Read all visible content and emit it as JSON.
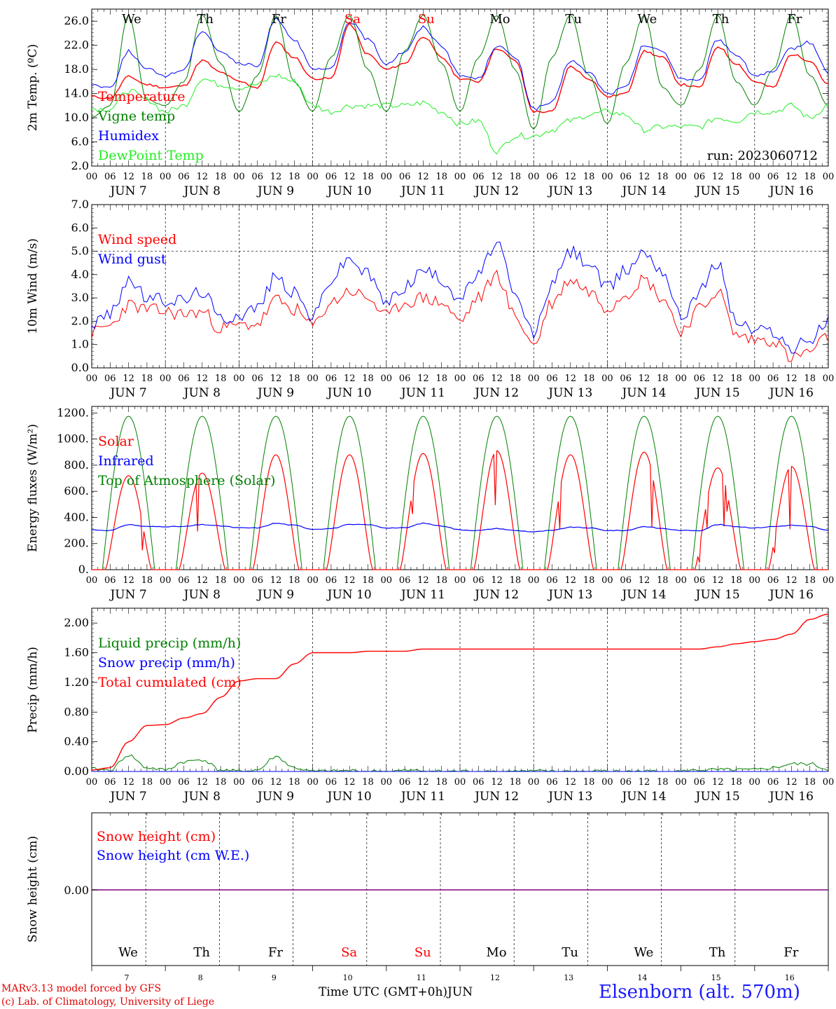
{
  "footer": {
    "credit_line1": "MARv3.13 model forced by GFS",
    "credit_line2": "(c) Lab. of Climatology, University of Liege",
    "time_axis": "Time UTC (GMT+0h)",
    "month": "JUN",
    "station": "Elsenborn (alt. 570m)"
  },
  "colors": {
    "red": "#ff0000",
    "blue": "#0000ff",
    "green": "#008000",
    "lime": "#22ee22",
    "purple": "#800080"
  },
  "chart_data": [
    {
      "type": "line",
      "id": "temperature",
      "ylabel": "2m Temp. (ºC)",
      "ylim": [
        2,
        28
      ],
      "yticks": [
        "2.0",
        "6.0",
        "10.0",
        "14.0",
        "18.0",
        "22.0",
        "26.0"
      ],
      "annotation": "run: 2023060712",
      "weekday_labels": [
        "We",
        "Th",
        "Fr",
        "Sa",
        "Su",
        "Mo",
        "Tu",
        "We",
        "Th",
        "Fr"
      ],
      "weekday_colors": [
        "#000",
        "#000",
        "#000",
        "#ff0000",
        "#ff0000",
        "#000",
        "#000",
        "#000",
        "#000",
        "#000"
      ],
      "hour_ticks": [
        "00",
        "06",
        "12",
        "18"
      ],
      "date_labels": [
        "JUN  7",
        "JUN  8",
        "JUN  9",
        "JUN 10",
        "JUN 11",
        "JUN 12",
        "JUN 13",
        "JUN 14",
        "JUN 15",
        "JUN 16"
      ],
      "x_hours": [
        0,
        6,
        12,
        18,
        24,
        30,
        36,
        42,
        48,
        54,
        60,
        66,
        72,
        78,
        84,
        90,
        96,
        102,
        108,
        114,
        120,
        126,
        132,
        138,
        144,
        150,
        156,
        162,
        168,
        174,
        180,
        186,
        192,
        198,
        204,
        210,
        216,
        222,
        228,
        234,
        240
      ],
      "series": [
        {
          "name": "Temperature",
          "color": "#ff0000",
          "values": [
            13.5,
            13.2,
            16.8,
            15.5,
            15.0,
            15.3,
            19.5,
            17.5,
            16.0,
            15.0,
            22.5,
            20.0,
            16.5,
            16.5,
            25.5,
            20.5,
            18.0,
            19.0,
            23.5,
            20.0,
            16.5,
            16.0,
            21.5,
            19.5,
            11.0,
            11.0,
            18.5,
            16.5,
            13.5,
            14.0,
            21.0,
            20.0,
            15.5,
            15.0,
            21.8,
            19.0,
            16.0,
            15.0,
            20.5,
            19.5,
            15.5
          ]
        },
        {
          "name": "Vigne temp",
          "color": "#008000",
          "values": [
            10.0,
            12.0,
            27.0,
            13.0,
            12.0,
            16.0,
            27.0,
            19.0,
            11.0,
            17.0,
            27.0,
            16.0,
            11.0,
            20.0,
            27.0,
            18.0,
            11.0,
            21.0,
            27.0,
            19.0,
            11.0,
            20.0,
            27.0,
            18.0,
            8.0,
            20.0,
            27.0,
            17.0,
            9.0,
            19.0,
            27.0,
            15.0,
            12.0,
            18.0,
            27.0,
            16.0,
            12.0,
            18.0,
            27.0,
            17.0,
            12.0
          ]
        },
        {
          "name": "Humidex",
          "color": "#0000ff",
          "values": [
            15.5,
            15.0,
            21.0,
            18.0,
            17.0,
            18.0,
            24.5,
            21.0,
            19.0,
            18.5,
            26.5,
            23.0,
            18.0,
            18.0,
            26.0,
            23.0,
            19.0,
            21.0,
            25.0,
            22.0,
            17.0,
            16.5,
            22.0,
            20.0,
            11.5,
            12.5,
            19.5,
            17.5,
            14.0,
            15.0,
            22.0,
            21.0,
            16.5,
            16.0,
            23.0,
            20.5,
            17.0,
            17.5,
            21.5,
            22.5,
            17.5
          ]
        },
        {
          "name": "DewPoint Temp",
          "color": "#22ee22",
          "values": [
            11.5,
            11.5,
            14.5,
            13.0,
            11.0,
            12.0,
            16.5,
            15.5,
            15.0,
            15.5,
            17.0,
            16.0,
            12.0,
            11.0,
            12.0,
            12.0,
            12.0,
            12.0,
            12.5,
            11.0,
            9.0,
            9.5,
            4.5,
            7.0,
            7.0,
            8.0,
            9.5,
            10.5,
            11.0,
            10.5,
            8.0,
            8.5,
            8.5,
            8.5,
            10.0,
            9.5,
            11.0,
            11.0,
            12.0,
            10.0,
            12.0
          ]
        }
      ]
    },
    {
      "type": "line",
      "id": "wind",
      "ylabel": "10m Wind (m/s)",
      "ylim": [
        0,
        7
      ],
      "yticks": [
        "0.0",
        "1.0",
        "2.0",
        "3.0",
        "4.0",
        "5.0",
        "6.0",
        "7.0"
      ],
      "ref_line": 5,
      "hour_ticks": [
        "00",
        "06",
        "12",
        "18"
      ],
      "date_labels": [
        "JUN  7",
        "JUN  8",
        "JUN  9",
        "JUN 10",
        "JUN 11",
        "JUN 12",
        "JUN 13",
        "JUN 14",
        "JUN 15",
        "JUN 16"
      ],
      "x_hours": [
        0,
        6,
        12,
        18,
        24,
        30,
        36,
        42,
        48,
        54,
        60,
        66,
        72,
        78,
        84,
        90,
        96,
        102,
        108,
        114,
        120,
        126,
        132,
        138,
        144,
        150,
        156,
        162,
        168,
        174,
        180,
        186,
        192,
        198,
        204,
        210,
        216,
        222,
        228,
        234,
        240
      ],
      "series": [
        {
          "name": "Wind speed",
          "color": "#ff0000",
          "values": [
            1.5,
            1.8,
            2.7,
            2.5,
            2.4,
            2.3,
            2.4,
            1.7,
            1.8,
            1.9,
            2.9,
            2.5,
            1.8,
            2.8,
            3.3,
            3.0,
            2.2,
            2.8,
            3.0,
            2.8,
            2.0,
            3.0,
            4.0,
            2.2,
            1.0,
            2.8,
            3.8,
            3.3,
            2.6,
            3.2,
            3.8,
            3.0,
            1.6,
            2.5,
            3.3,
            1.4,
            1.2,
            1.2,
            0.4,
            0.7,
            1.3
          ]
        },
        {
          "name": "Wind gust",
          "color": "#0000ff",
          "values": [
            1.9,
            2.3,
            3.8,
            3.0,
            2.9,
            2.9,
            3.3,
            2.1,
            2.3,
            2.6,
            3.9,
            3.2,
            2.2,
            3.8,
            4.7,
            4.0,
            2.8,
            3.5,
            4.2,
            3.8,
            3.0,
            4.0,
            5.4,
            3.0,
            1.5,
            3.6,
            5.0,
            4.5,
            3.4,
            4.2,
            5.0,
            4.2,
            2.2,
            3.3,
            4.5,
            2.0,
            1.6,
            1.6,
            0.8,
            1.2,
            2.0
          ]
        }
      ]
    },
    {
      "type": "line",
      "id": "energy",
      "ylabel": "Energy fluxes (W/m²)",
      "ylim": [
        0,
        1250
      ],
      "yticks": [
        "0.",
        "200.",
        "400.",
        "600.",
        "800.",
        "1000.",
        "1200."
      ],
      "hour_ticks": [
        "00",
        "06",
        "12",
        "18"
      ],
      "date_labels": [
        "JUN  7",
        "JUN  8",
        "JUN  9",
        "JUN 10",
        "JUN 11",
        "JUN 12",
        "JUN 13",
        "JUN 14",
        "JUN 15",
        "JUN 16"
      ],
      "daily_solar_peak": [
        720,
        740,
        880,
        880,
        890,
        910,
        880,
        900,
        780,
        790
      ],
      "toa_peak": 1175,
      "series": [
        {
          "name": "Solar",
          "color": "#ff0000"
        },
        {
          "name": "Infrared",
          "color": "#0000ff",
          "values": [
            305,
            300,
            345,
            330,
            330,
            330,
            345,
            335,
            320,
            320,
            355,
            340,
            310,
            315,
            345,
            345,
            320,
            320,
            355,
            335,
            305,
            300,
            315,
            300,
            290,
            300,
            325,
            320,
            300,
            300,
            330,
            315,
            300,
            300,
            345,
            330,
            320,
            330,
            340,
            330,
            300
          ]
        },
        {
          "name": "Top of Atmosphere (Solar)",
          "color": "#008000"
        }
      ]
    },
    {
      "type": "line",
      "id": "precip",
      "ylabel": "Precip (mm/h)",
      "ylim": [
        0,
        2.2
      ],
      "yticks": [
        "0.00",
        "0.40",
        "0.80",
        "1.20",
        "1.60",
        "2.00"
      ],
      "hour_ticks": [
        "00",
        "06",
        "12",
        "18"
      ],
      "date_labels": [
        "JUN  7",
        "JUN  8",
        "JUN  9",
        "JUN 10",
        "JUN 11",
        "JUN 12",
        "JUN 13",
        "JUN 14",
        "JUN 15",
        "JUN 16"
      ],
      "x_hours": [
        0,
        6,
        12,
        18,
        24,
        30,
        36,
        42,
        48,
        54,
        60,
        66,
        72,
        78,
        84,
        90,
        96,
        102,
        108,
        114,
        120,
        126,
        132,
        138,
        144,
        150,
        156,
        162,
        168,
        174,
        180,
        186,
        192,
        198,
        204,
        210,
        216,
        222,
        228,
        234,
        240
      ],
      "series": [
        {
          "name": "Liquid precip (mm/h)",
          "color": "#008000",
          "values": [
            0.03,
            0.02,
            0.22,
            0.05,
            0.02,
            0.13,
            0.16,
            0.02,
            0.0,
            0.02,
            0.2,
            0.05,
            0.0,
            0.0,
            0.01,
            0.0,
            0.0,
            0.01,
            0.01,
            0.0,
            0.0,
            0.0,
            0.0,
            0.0,
            0.0,
            0.0,
            0.0,
            0.0,
            0.0,
            0.0,
            0.0,
            0.0,
            0.0,
            0.02,
            0.02,
            0.02,
            0.02,
            0.05,
            0.1,
            0.1,
            0.03
          ]
        },
        {
          "name": "Snow precip (mm/h)",
          "color": "#0000ff",
          "values": [
            0,
            0,
            0,
            0,
            0,
            0,
            0,
            0,
            0,
            0,
            0,
            0,
            0,
            0,
            0,
            0,
            0,
            0,
            0,
            0,
            0,
            0,
            0,
            0,
            0,
            0,
            0,
            0,
            0,
            0,
            0,
            0,
            0,
            0,
            0,
            0,
            0,
            0,
            0,
            0,
            0
          ]
        },
        {
          "name": "Total cumulated (cm)",
          "color": "#ff0000",
          "values": [
            0.02,
            0.05,
            0.4,
            0.62,
            0.63,
            0.72,
            0.78,
            1.0,
            1.22,
            1.25,
            1.25,
            1.45,
            1.6,
            1.6,
            1.6,
            1.62,
            1.62,
            1.62,
            1.65,
            1.65,
            1.65,
            1.65,
            1.65,
            1.65,
            1.65,
            1.65,
            1.65,
            1.65,
            1.65,
            1.65,
            1.65,
            1.65,
            1.65,
            1.65,
            1.68,
            1.72,
            1.75,
            1.78,
            1.85,
            2.05,
            2.12
          ]
        }
      ]
    },
    {
      "type": "line",
      "id": "snow",
      "ylabel": "Snow height (cm)",
      "yticks": [
        "0.00"
      ],
      "weekday_labels": [
        "We",
        "Th",
        "Fr",
        "Sa",
        "Su",
        "Mo",
        "Tu",
        "We",
        "Th",
        "Fr"
      ],
      "weekday_colors": [
        "#000",
        "#000",
        "#000",
        "#ff0000",
        "#ff0000",
        "#000",
        "#000",
        "#000",
        "#000",
        "#000"
      ],
      "day_numbers": [
        "7",
        "8",
        "9",
        "10",
        "11",
        "12",
        "13",
        "14",
        "15",
        "16"
      ],
      "series": [
        {
          "name": "Snow height (cm)",
          "color": "#ff0000",
          "values": [
            0,
            0
          ]
        },
        {
          "name": "Snow height (cm W.E.)",
          "color": "#0000ff",
          "values": [
            0,
            0
          ]
        }
      ]
    }
  ]
}
